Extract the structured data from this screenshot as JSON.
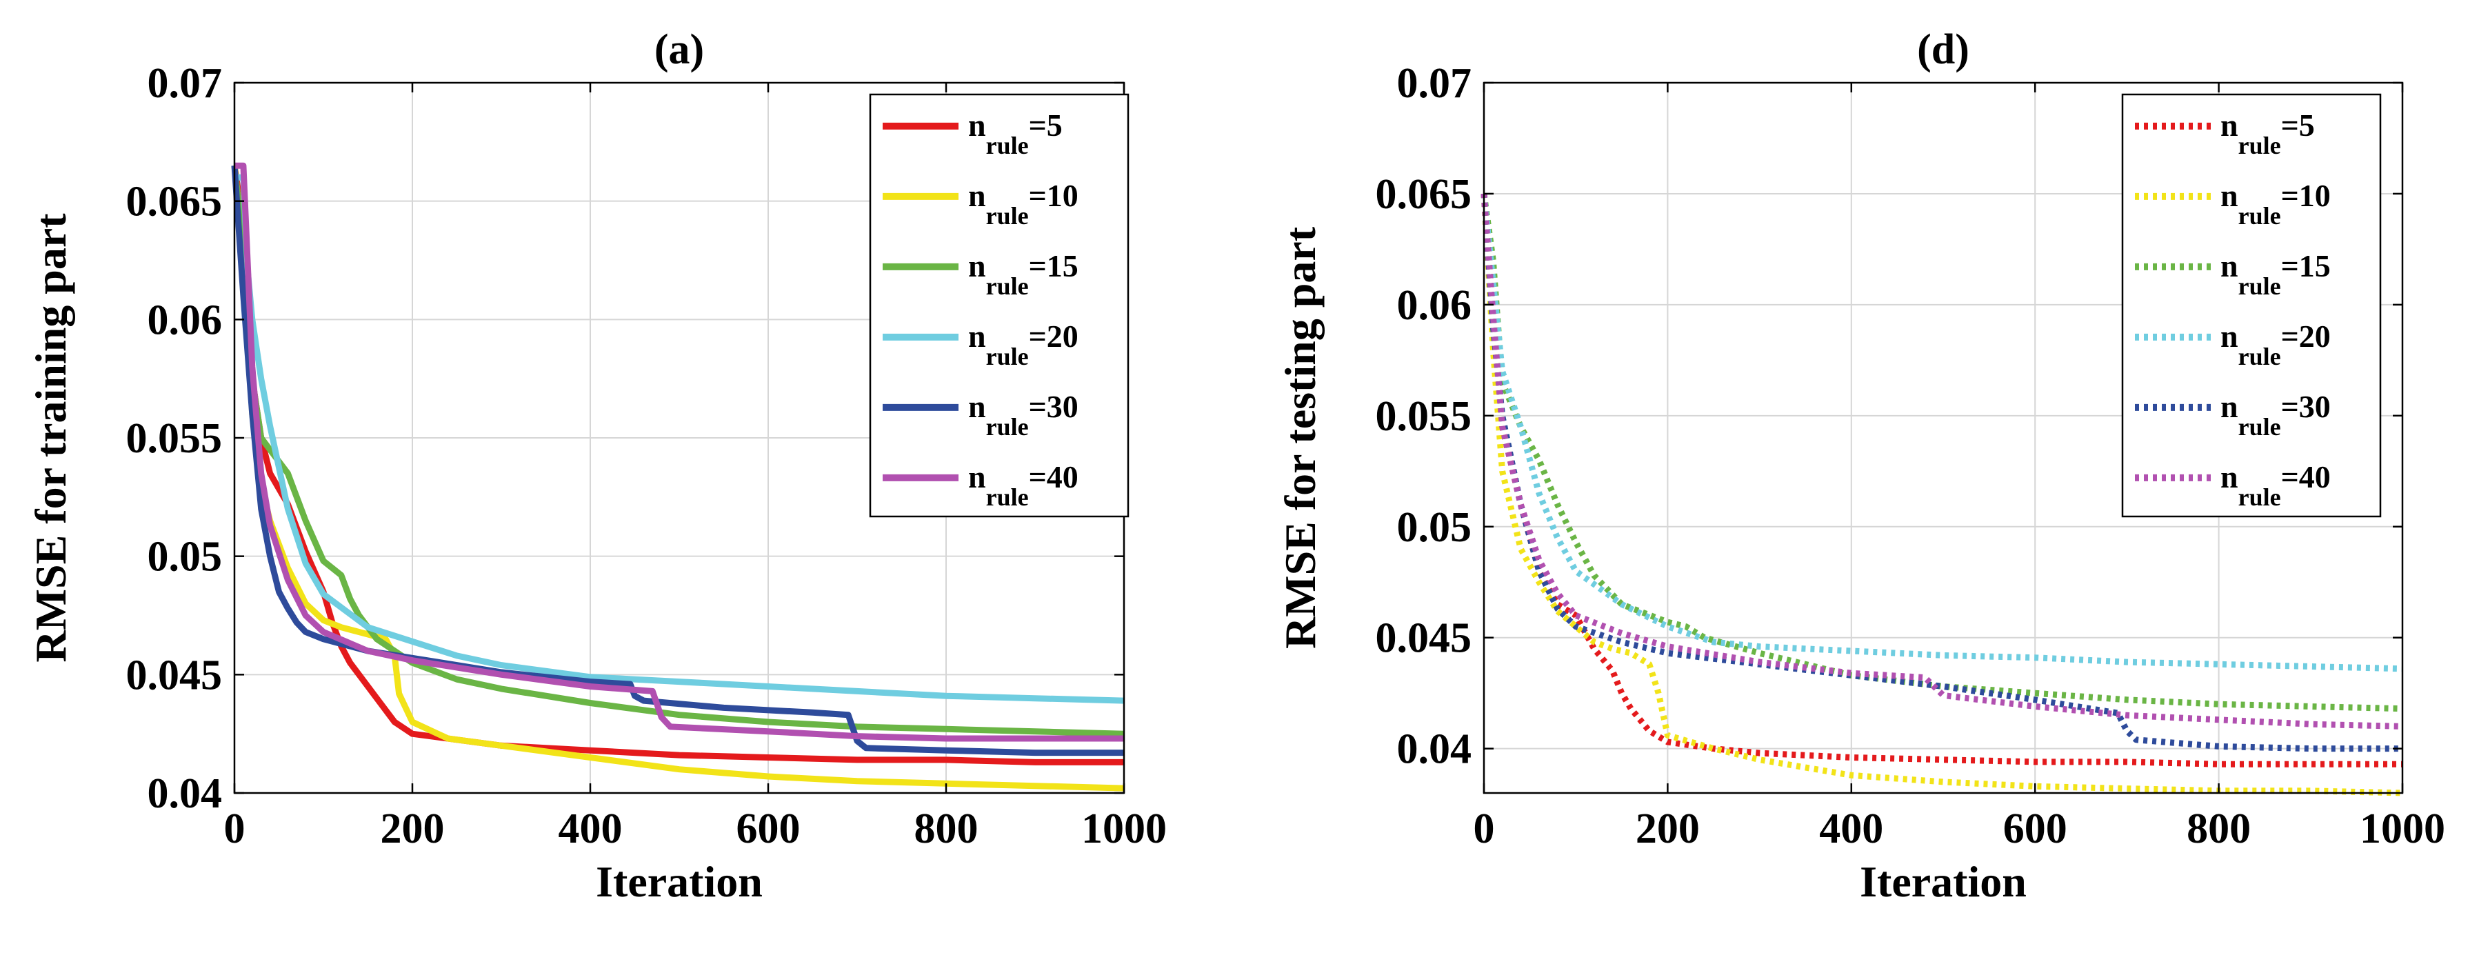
{
  "chart_data": [
    {
      "id": "a",
      "type": "line",
      "title": "(a)",
      "xlabel": "Iteration",
      "ylabel": "RMSE for training part",
      "xlim": [
        0,
        1000
      ],
      "ylim": [
        0.04,
        0.07
      ],
      "xticks": [
        0,
        200,
        400,
        600,
        800,
        1000
      ],
      "xtick_labels": [
        "0",
        "200",
        "400",
        "600",
        "800",
        "1000"
      ],
      "yticks": [
        0.04,
        0.045,
        0.05,
        0.055,
        0.06,
        0.065,
        0.07
      ],
      "ytick_labels": [
        "0.04",
        "0.045",
        "0.05",
        "0.055",
        "0.06",
        "0.065",
        "0.07"
      ],
      "grid": true,
      "legend_position": "top-right",
      "line_style": "solid",
      "series": [
        {
          "name": "n_rule=5",
          "legend_main": "n",
          "legend_sub": "rule",
          "legend_tail": "=5",
          "color": "#e41a1c",
          "x": [
            0,
            10,
            20,
            30,
            40,
            60,
            80,
            100,
            110,
            120,
            130,
            140,
            160,
            180,
            200,
            300,
            400,
            500,
            600,
            700,
            800,
            900,
            1000
          ],
          "y": [
            0.0665,
            0.064,
            0.0575,
            0.055,
            0.0535,
            0.0522,
            0.0502,
            0.0485,
            0.0472,
            0.0462,
            0.0455,
            0.045,
            0.044,
            0.043,
            0.0425,
            0.042,
            0.0418,
            0.0416,
            0.0415,
            0.0414,
            0.0414,
            0.0413,
            0.0413
          ]
        },
        {
          "name": "n_rule=10",
          "legend_main": "n",
          "legend_sub": "rule",
          "legend_tail": "=10",
          "color": "#f2e318",
          "x": [
            0,
            10,
            20,
            30,
            40,
            60,
            80,
            100,
            120,
            140,
            160,
            170,
            180,
            185,
            200,
            240,
            300,
            400,
            500,
            600,
            700,
            800,
            900,
            1000
          ],
          "y": [
            0.0665,
            0.063,
            0.056,
            0.053,
            0.0515,
            0.0495,
            0.048,
            0.0473,
            0.047,
            0.0468,
            0.0466,
            0.0465,
            0.0458,
            0.0442,
            0.043,
            0.0423,
            0.042,
            0.0415,
            0.041,
            0.0407,
            0.0405,
            0.0404,
            0.0403,
            0.0402
          ]
        },
        {
          "name": "n_rule=15",
          "legend_main": "n",
          "legend_sub": "rule",
          "legend_tail": "=15",
          "color": "#6ab545",
          "x": [
            0,
            10,
            20,
            30,
            40,
            60,
            80,
            100,
            120,
            130,
            140,
            160,
            200,
            250,
            300,
            400,
            500,
            600,
            700,
            800,
            900,
            1000
          ],
          "y": [
            0.0665,
            0.063,
            0.0575,
            0.055,
            0.0545,
            0.0535,
            0.0515,
            0.0498,
            0.0492,
            0.0482,
            0.0475,
            0.0465,
            0.0455,
            0.0448,
            0.0444,
            0.0438,
            0.0433,
            0.043,
            0.0428,
            0.0427,
            0.0426,
            0.0425
          ]
        },
        {
          "name": "n_rule=20",
          "legend_main": "n",
          "legend_sub": "rule",
          "legend_tail": "=20",
          "color": "#6fcde0",
          "x": [
            0,
            10,
            15,
            20,
            30,
            40,
            60,
            80,
            100,
            150,
            200,
            250,
            300,
            400,
            500,
            600,
            700,
            800,
            900,
            1000
          ],
          "y": [
            0.066,
            0.066,
            0.062,
            0.06,
            0.0575,
            0.0555,
            0.052,
            0.0497,
            0.0484,
            0.047,
            0.0464,
            0.0458,
            0.0454,
            0.0449,
            0.0447,
            0.0445,
            0.0443,
            0.0441,
            0.044,
            0.0439
          ]
        },
        {
          "name": "n_rule=30",
          "legend_main": "n",
          "legend_sub": "rule",
          "legend_tail": "=30",
          "color": "#2e4b9b",
          "x": [
            0,
            10,
            20,
            30,
            40,
            50,
            60,
            70,
            80,
            100,
            150,
            200,
            300,
            400,
            445,
            450,
            460,
            550,
            650,
            690,
            700,
            710,
            800,
            900,
            1000
          ],
          "y": [
            0.0665,
            0.061,
            0.056,
            0.052,
            0.05,
            0.0485,
            0.0478,
            0.0472,
            0.0468,
            0.0465,
            0.046,
            0.0457,
            0.0451,
            0.0447,
            0.0446,
            0.0441,
            0.0439,
            0.0436,
            0.0434,
            0.0433,
            0.0422,
            0.0419,
            0.0418,
            0.0417,
            0.0417
          ]
        },
        {
          "name": "n_rule=40",
          "legend_main": "n",
          "legend_sub": "rule",
          "legend_tail": "=40",
          "color": "#b150b0",
          "x": [
            0,
            10,
            20,
            30,
            40,
            60,
            80,
            100,
            150,
            200,
            300,
            400,
            470,
            480,
            490,
            600,
            700,
            800,
            900,
            1000
          ],
          "y": [
            0.0665,
            0.0665,
            0.058,
            0.0535,
            0.0513,
            0.049,
            0.0475,
            0.0468,
            0.046,
            0.0456,
            0.045,
            0.0445,
            0.0443,
            0.0432,
            0.0428,
            0.0426,
            0.0424,
            0.0423,
            0.0423,
            0.0423
          ]
        }
      ]
    },
    {
      "id": "d",
      "type": "line",
      "title": "(d)",
      "xlabel": "Iteration",
      "ylabel": "RMSE for testing part",
      "xlim": [
        0,
        1000
      ],
      "ylim": [
        0.038,
        0.07
      ],
      "xticks": [
        0,
        200,
        400,
        600,
        800,
        1000
      ],
      "xtick_labels": [
        "0",
        "200",
        "400",
        "600",
        "800",
        "1000"
      ],
      "yticks": [
        0.04,
        0.045,
        0.05,
        0.055,
        0.06,
        0.065,
        0.07
      ],
      "ytick_labels": [
        "0.04",
        "0.045",
        "0.05",
        "0.055",
        "0.06",
        "0.065",
        "0.07"
      ],
      "grid": true,
      "legend_position": "top-right",
      "line_style": "dotted",
      "series": [
        {
          "name": "n_rule=5",
          "legend_main": "n",
          "legend_sub": "rule",
          "legend_tail": "=5",
          "color": "#e41a1c",
          "x": [
            0,
            10,
            20,
            40,
            60,
            80,
            100,
            120,
            140,
            150,
            160,
            180,
            200,
            250,
            300,
            400,
            500,
            600,
            700,
            800,
            900,
            1000
          ],
          "y": [
            0.065,
            0.06,
            0.0545,
            0.051,
            0.048,
            0.0465,
            0.046,
            0.0445,
            0.0435,
            0.0425,
            0.0418,
            0.0408,
            0.0403,
            0.04,
            0.0398,
            0.0396,
            0.0395,
            0.0394,
            0.0394,
            0.0393,
            0.0393,
            0.0393
          ]
        },
        {
          "name": "n_rule=10",
          "legend_main": "n",
          "legend_sub": "rule",
          "legend_tail": "=10",
          "color": "#f2e318",
          "x": [
            0,
            10,
            20,
            40,
            60,
            80,
            100,
            120,
            140,
            160,
            180,
            190,
            200,
            250,
            300,
            400,
            500,
            600,
            700,
            800,
            900,
            1000
          ],
          "y": [
            0.065,
            0.058,
            0.0525,
            0.049,
            0.0475,
            0.0462,
            0.0455,
            0.0448,
            0.0445,
            0.0443,
            0.0438,
            0.0425,
            0.0406,
            0.04,
            0.0395,
            0.0388,
            0.0385,
            0.0383,
            0.0382,
            0.0381,
            0.0381,
            0.038
          ]
        },
        {
          "name": "n_rule=15",
          "legend_main": "n",
          "legend_sub": "rule",
          "legend_tail": "=15",
          "color": "#6ab545",
          "x": [
            0,
            10,
            20,
            40,
            60,
            80,
            100,
            120,
            150,
            200,
            220,
            240,
            300,
            400,
            500,
            600,
            700,
            800,
            900,
            1000
          ],
          "y": [
            0.065,
            0.062,
            0.0565,
            0.0545,
            0.053,
            0.051,
            0.0493,
            0.0478,
            0.0465,
            0.0457,
            0.0455,
            0.045,
            0.0443,
            0.0433,
            0.0428,
            0.0425,
            0.0422,
            0.042,
            0.0419,
            0.0418
          ]
        },
        {
          "name": "n_rule=20",
          "legend_main": "n",
          "legend_sub": "rule",
          "legend_tail": "=20",
          "color": "#6fcde0",
          "x": [
            0,
            10,
            20,
            40,
            60,
            80,
            100,
            150,
            200,
            250,
            300,
            400,
            500,
            600,
            700,
            800,
            900,
            1000
          ],
          "y": [
            0.065,
            0.061,
            0.057,
            0.0545,
            0.0515,
            0.0495,
            0.048,
            0.0465,
            0.0455,
            0.0448,
            0.0446,
            0.0444,
            0.0442,
            0.0441,
            0.0439,
            0.0438,
            0.0437,
            0.0436
          ]
        },
        {
          "name": "n_rule=30",
          "legend_main": "n",
          "legend_sub": "rule",
          "legend_tail": "=30",
          "color": "#2e4b9b",
          "x": [
            0,
            10,
            20,
            40,
            60,
            80,
            100,
            150,
            200,
            300,
            400,
            500,
            600,
            690,
            700,
            710,
            800,
            900,
            1000
          ],
          "y": [
            0.065,
            0.059,
            0.055,
            0.051,
            0.048,
            0.0463,
            0.0455,
            0.0448,
            0.0443,
            0.0438,
            0.0433,
            0.0428,
            0.0422,
            0.0416,
            0.0408,
            0.0404,
            0.0401,
            0.04,
            0.04
          ]
        },
        {
          "name": "n_rule=40",
          "legend_main": "n",
          "legend_sub": "rule",
          "legend_tail": "=40",
          "color": "#b150b0",
          "x": [
            0,
            10,
            20,
            40,
            60,
            80,
            100,
            150,
            200,
            300,
            400,
            480,
            500,
            600,
            700,
            800,
            900,
            1000
          ],
          "y": [
            0.065,
            0.0595,
            0.0545,
            0.051,
            0.0485,
            0.047,
            0.046,
            0.0452,
            0.0446,
            0.0439,
            0.0434,
            0.0432,
            0.0424,
            0.0419,
            0.0415,
            0.0413,
            0.0411,
            0.041
          ]
        }
      ]
    }
  ]
}
